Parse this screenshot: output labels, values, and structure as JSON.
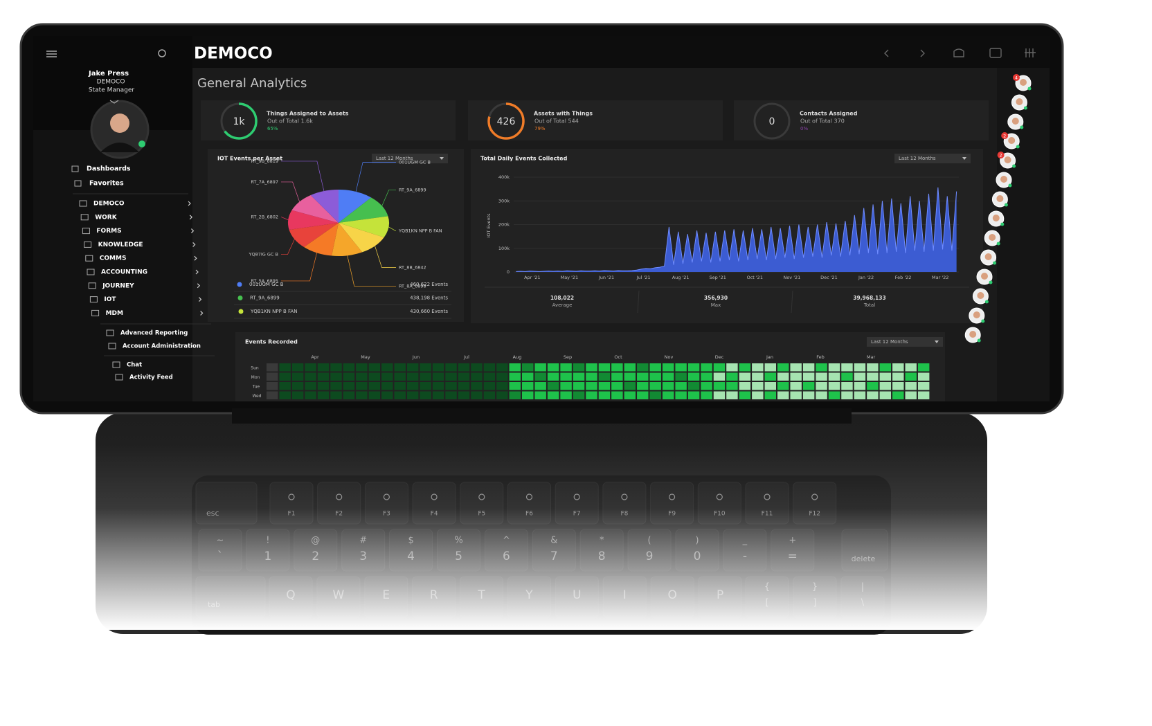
{
  "brand": "DEMOCO",
  "user": {
    "name": "Jake Press",
    "org": "DEMOCO",
    "role": "State Manager"
  },
  "nav": [
    "Dashboards",
    "Favorites"
  ],
  "menu": [
    "DEMOCO",
    "WORK",
    "FORMS",
    "KNOWLEDGE",
    "COMMS",
    "ACCOUNTING",
    "JOURNEY",
    "IOT",
    "MDM"
  ],
  "admin_links": [
    "Advanced Reporting",
    "Account Administration"
  ],
  "social_links": [
    "Chat",
    "Activity Feed"
  ],
  "page_title": "General Analytics",
  "kpis": [
    {
      "value": "1k",
      "label": "Things Assigned to Assets",
      "sub": "Out of Total 1.6k",
      "percent": 65,
      "percent_label": "65%",
      "color": "#2ecc71"
    },
    {
      "value": "426",
      "label": "Assets with Things",
      "sub": "Out of Total 544",
      "percent": 79,
      "percent_label": "79%",
      "color": "#f07c28"
    },
    {
      "value": "0",
      "label": "Contacts Assigned",
      "sub": "Out of Total 370",
      "percent": 0,
      "percent_label": "0%",
      "color": "#8e44ad"
    }
  ],
  "pie_chart": {
    "type": "pie",
    "title": "IOT Events per Asset",
    "period": "Last 12 Months",
    "slices": [
      {
        "name": "001UGM GC B",
        "color": "#4f7df5",
        "value": 460622,
        "value_label": "460,622 Events"
      },
      {
        "name": "RT_9A_6899",
        "color": "#46bf4f",
        "value": 438198,
        "value_label": "438,198 Events"
      },
      {
        "name": "YQB1KN NPP B FAN",
        "color": "#c5e33a",
        "value": 430660,
        "value_label": "430,660 Events"
      },
      {
        "name": "RT_8B_6842",
        "color": "#f7d448",
        "value": 415000
      },
      {
        "name": "RT_8A_6898",
        "color": "#f5a62a",
        "value": 410000
      },
      {
        "name": "RT_5A_6895",
        "color": "#f57a26",
        "value": 405000
      },
      {
        "name": "YQ87IG GC B",
        "color": "#e8433b",
        "value": 400000
      },
      {
        "name": "RT_2B_6802",
        "color": "#e8385f",
        "value": 395000
      },
      {
        "name": "RT_7A_6897",
        "color": "#e8609e",
        "value": 390000
      },
      {
        "name": "RT_9B_6819",
        "color": "#8c5cd8",
        "value": 385000
      }
    ]
  },
  "line_chart": {
    "type": "area",
    "title": "Total Daily Events Collected",
    "period": "Last 12 Months",
    "y_label": "IOT Events",
    "color": "#3f63e6",
    "categories": [
      "Apr '21",
      "May '21",
      "Jun '21",
      "Jul '21",
      "Aug '21",
      "Sep '21",
      "Oct '21",
      "Nov '21",
      "Dec '21",
      "Jan '22",
      "Feb '22",
      "Mar '22"
    ],
    "ylim": [
      0,
      400000
    ],
    "yticks": [
      0,
      {
        "value": 100000,
        "label": "100k"
      },
      {
        "value": 200000,
        "label": "200k"
      },
      {
        "value": 300000,
        "label": "300k"
      },
      {
        "value": 400000,
        "label": "400k"
      }
    ],
    "grid": true,
    "values": [
      2000,
      3000,
      2000,
      4000,
      3000,
      2000,
      3000,
      4000,
      3000,
      4000,
      3000,
      5000,
      4000,
      3000,
      5000,
      4000,
      4000,
      5000,
      4000,
      6000,
      5000,
      4000,
      6000,
      5000,
      5000,
      6000,
      8000,
      12000,
      15000,
      14000,
      18000,
      20000,
      25000,
      190000,
      30000,
      170000,
      35000,
      160000,
      40000,
      175000,
      45000,
      165000,
      40000,
      170000,
      45000,
      175000,
      50000,
      180000,
      45000,
      175000,
      50000,
      185000,
      55000,
      180000,
      50000,
      190000,
      55000,
      185000,
      60000,
      195000,
      55000,
      200000,
      60000,
      190000,
      65000,
      200000,
      60000,
      210000,
      70000,
      205000,
      65000,
      215000,
      70000,
      240000,
      75000,
      270000,
      80000,
      285000,
      75000,
      300000,
      80000,
      310000,
      85000,
      290000,
      80000,
      320000,
      90000,
      300000,
      85000,
      330000,
      90000,
      356930,
      95000,
      320000,
      90000,
      340000
    ],
    "stats": [
      {
        "value": "108,022",
        "label": "Average"
      },
      {
        "value": "356,930",
        "label": "Max"
      },
      {
        "value": "39,968,133",
        "label": "Total"
      }
    ]
  },
  "heatmap": {
    "type": "heatmap",
    "title": "Events Recorded",
    "period": "Last 12 Months",
    "months": [
      "Apr",
      "May",
      "Jun",
      "Jul",
      "Aug",
      "Sep",
      "Oct",
      "Nov",
      "Dec",
      "Jan",
      "Feb",
      "Mar"
    ],
    "days": [
      "Sun",
      "Mon",
      "Tue",
      "Wed"
    ],
    "colors": [
      "#3a3a3a",
      "#0d4a1f",
      "#128a33",
      "#1ec24b",
      "#a6e4b1"
    ],
    "rows": [
      [
        0,
        1,
        1,
        1,
        1,
        1,
        1,
        1,
        1,
        1,
        1,
        1,
        1,
        1,
        1,
        1,
        1,
        1,
        1,
        3,
        2,
        3,
        3,
        3,
        2,
        3,
        3,
        3,
        3,
        2,
        3,
        3,
        3,
        3,
        3,
        3,
        4,
        3,
        4,
        4,
        3,
        4,
        4,
        3,
        4,
        4,
        4,
        4,
        3,
        4,
        4,
        3
      ],
      [
        0,
        1,
        1,
        1,
        1,
        1,
        1,
        1,
        1,
        1,
        1,
        1,
        1,
        1,
        1,
        1,
        1,
        1,
        1,
        3,
        3,
        2,
        3,
        3,
        3,
        3,
        2,
        3,
        3,
        3,
        3,
        3,
        2,
        3,
        3,
        4,
        3,
        4,
        4,
        3,
        4,
        4,
        4,
        4,
        4,
        3,
        4,
        4,
        4,
        4,
        3,
        4
      ],
      [
        0,
        1,
        1,
        1,
        1,
        1,
        1,
        1,
        1,
        1,
        1,
        1,
        1,
        1,
        1,
        1,
        1,
        1,
        1,
        3,
        3,
        3,
        2,
        3,
        3,
        3,
        3,
        3,
        2,
        3,
        3,
        3,
        3,
        2,
        3,
        3,
        3,
        4,
        4,
        4,
        3,
        4,
        3,
        4,
        4,
        4,
        4,
        3,
        4,
        4,
        4,
        4
      ],
      [
        0,
        1,
        1,
        1,
        1,
        1,
        1,
        1,
        1,
        1,
        1,
        1,
        1,
        1,
        1,
        1,
        1,
        1,
        1,
        2,
        3,
        3,
        3,
        3,
        2,
        3,
        3,
        3,
        3,
        3,
        2,
        3,
        3,
        3,
        3,
        4,
        4,
        3,
        4,
        3,
        4,
        4,
        4,
        4,
        3,
        4,
        4,
        4,
        4,
        3,
        4,
        4
      ]
    ]
  },
  "contacts": {
    "badges": [
      "4",
      "2",
      "2"
    ]
  },
  "keyboard": {
    "esc": "esc",
    "fn": [
      "F1",
      "F2",
      "F3",
      "F4",
      "F5",
      "F6",
      "F7",
      "F8",
      "F9",
      "F10",
      "F11",
      "F12"
    ],
    "numbers": [
      [
        "~",
        "`"
      ],
      [
        "!",
        "1"
      ],
      [
        "@",
        "2"
      ],
      [
        "#",
        "3"
      ],
      [
        "$",
        "4"
      ],
      [
        "%",
        "5"
      ],
      [
        "^",
        "6"
      ],
      [
        "&",
        "7"
      ],
      [
        "*",
        "8"
      ],
      [
        "(",
        "9"
      ],
      [
        ")",
        "0"
      ],
      [
        "_",
        "-"
      ],
      [
        "+",
        "="
      ]
    ],
    "delete": "delete",
    "tab": "tab",
    "letters": [
      "Q",
      "W",
      "E",
      "R",
      "T",
      "Y",
      "U",
      "I",
      "O",
      "P"
    ],
    "brackets": [
      [
        "{",
        "["
      ],
      [
        "}",
        "]"
      ],
      [
        "|",
        "\\"
      ]
    ]
  }
}
